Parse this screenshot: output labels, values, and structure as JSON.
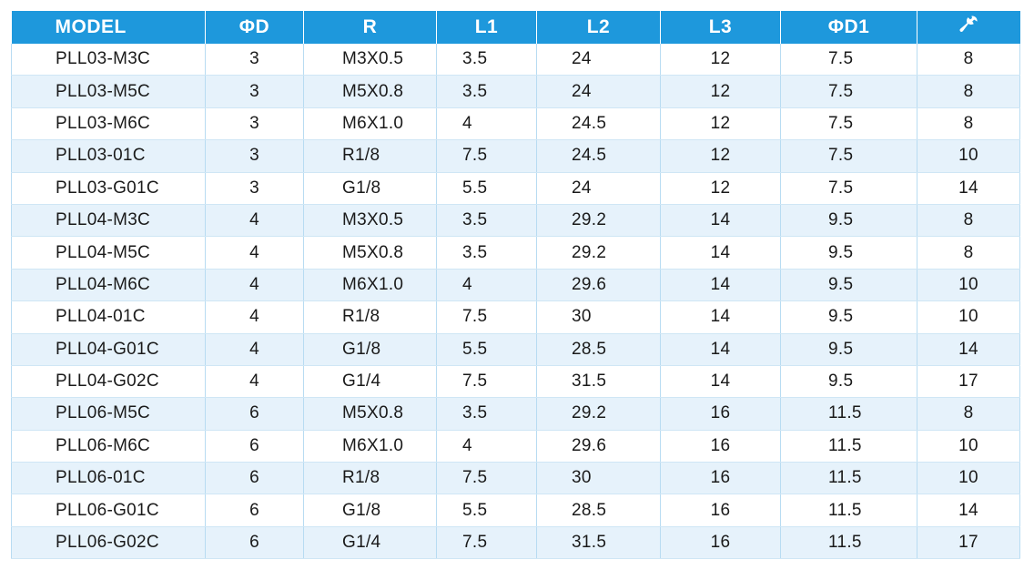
{
  "table": {
    "headers": {
      "model": "MODEL",
      "d": "ΦD",
      "r": "R",
      "l1": "L1",
      "l2": "L2",
      "l3": "L3",
      "d1": "ΦD1",
      "wrench_icon": "wrench-icon"
    },
    "rows": [
      [
        "PLL03-M3C",
        "3",
        "M3X0.5",
        "3.5",
        "24",
        "12",
        "7.5",
        "8"
      ],
      [
        "PLL03-M5C",
        "3",
        "M5X0.8",
        "3.5",
        "24",
        "12",
        "7.5",
        "8"
      ],
      [
        "PLL03-M6C",
        "3",
        "M6X1.0",
        "4",
        "24.5",
        "12",
        "7.5",
        "8"
      ],
      [
        "PLL03-01C",
        "3",
        "R1/8",
        "7.5",
        "24.5",
        "12",
        "7.5",
        "10"
      ],
      [
        "PLL03-G01C",
        "3",
        "G1/8",
        "5.5",
        "24",
        "12",
        "7.5",
        "14"
      ],
      [
        "PLL04-M3C",
        "4",
        "M3X0.5",
        "3.5",
        "29.2",
        "14",
        "9.5",
        "8"
      ],
      [
        "PLL04-M5C",
        "4",
        "M5X0.8",
        "3.5",
        "29.2",
        "14",
        "9.5",
        "8"
      ],
      [
        "PLL04-M6C",
        "4",
        "M6X1.0",
        "4",
        "29.6",
        "14",
        "9.5",
        "10"
      ],
      [
        "PLL04-01C",
        "4",
        "R1/8",
        "7.5",
        "30",
        "14",
        "9.5",
        "10"
      ],
      [
        "PLL04-G01C",
        "4",
        "G1/8",
        "5.5",
        "28.5",
        "14",
        "9.5",
        "14"
      ],
      [
        "PLL04-G02C",
        "4",
        "G1/4",
        "7.5",
        "31.5",
        "14",
        "9.5",
        "17"
      ],
      [
        "PLL06-M5C",
        "6",
        "M5X0.8",
        "3.5",
        "29.2",
        "16",
        "11.5",
        "8"
      ],
      [
        "PLL06-M6C",
        "6",
        "M6X1.0",
        "4",
        "29.6",
        "16",
        "11.5",
        "10"
      ],
      [
        "PLL06-01C",
        "6",
        "R1/8",
        "7.5",
        "30",
        "16",
        "11.5",
        "10"
      ],
      [
        "PLL06-G01C",
        "6",
        "G1/8",
        "5.5",
        "28.5",
        "16",
        "11.5",
        "14"
      ],
      [
        "PLL06-G02C",
        "6",
        "G1/4",
        "7.5",
        "31.5",
        "16",
        "11.5",
        "17"
      ]
    ]
  },
  "colors": {
    "header_background": "#1e98dc",
    "header_text": "#ffffff",
    "row_alt_background": "#e6f2fb",
    "row_background": "#ffffff"
  }
}
